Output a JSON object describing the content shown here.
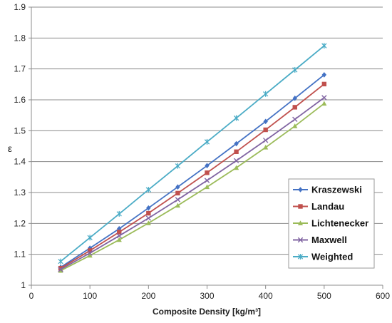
{
  "chart_data": {
    "type": "line",
    "title": "",
    "xlabel": "Composite Density [kg/m³]",
    "ylabel": "ε",
    "xlim": [
      0,
      600
    ],
    "ylim": [
      1,
      1.9
    ],
    "x_ticks": [
      0,
      100,
      200,
      300,
      400,
      500,
      600
    ],
    "y_ticks": [
      1,
      1.1,
      1.2,
      1.3,
      1.4,
      1.5,
      1.6,
      1.7,
      1.8,
      1.9
    ],
    "y_tick_labels": [
      "1",
      "1.1",
      "1.2",
      "1.3",
      "1.4",
      "1.5",
      "1.6",
      "1.7",
      "1.8",
      "1.9"
    ],
    "grid": "horizontal",
    "legend_position": "bottom-right",
    "x": [
      50,
      100,
      150,
      200,
      250,
      300,
      350,
      400,
      450,
      500
    ],
    "series": [
      {
        "name": "Kraszewski",
        "color": "#4472C4",
        "marker": "diamond",
        "values": [
          1.058,
          1.12,
          1.183,
          1.25,
          1.318,
          1.387,
          1.458,
          1.53,
          1.605,
          1.681
        ]
      },
      {
        "name": "Landau",
        "color": "#C0504D",
        "marker": "square",
        "values": [
          1.055,
          1.112,
          1.172,
          1.233,
          1.298,
          1.364,
          1.432,
          1.503,
          1.576,
          1.651
        ]
      },
      {
        "name": "Lichtenecker",
        "color": "#9BBB59",
        "marker": "triangle",
        "values": [
          1.047,
          1.096,
          1.147,
          1.201,
          1.258,
          1.318,
          1.38,
          1.446,
          1.515,
          1.588
        ]
      },
      {
        "name": "Maxwell",
        "color": "#8064A2",
        "marker": "x",
        "values": [
          1.051,
          1.104,
          1.16,
          1.217,
          1.277,
          1.339,
          1.403,
          1.469,
          1.537,
          1.607
        ]
      },
      {
        "name": "Weighted",
        "color": "#4BACC6",
        "marker": "star",
        "values": [
          1.077,
          1.154,
          1.231,
          1.309,
          1.386,
          1.464,
          1.541,
          1.619,
          1.697,
          1.775
        ]
      }
    ]
  }
}
